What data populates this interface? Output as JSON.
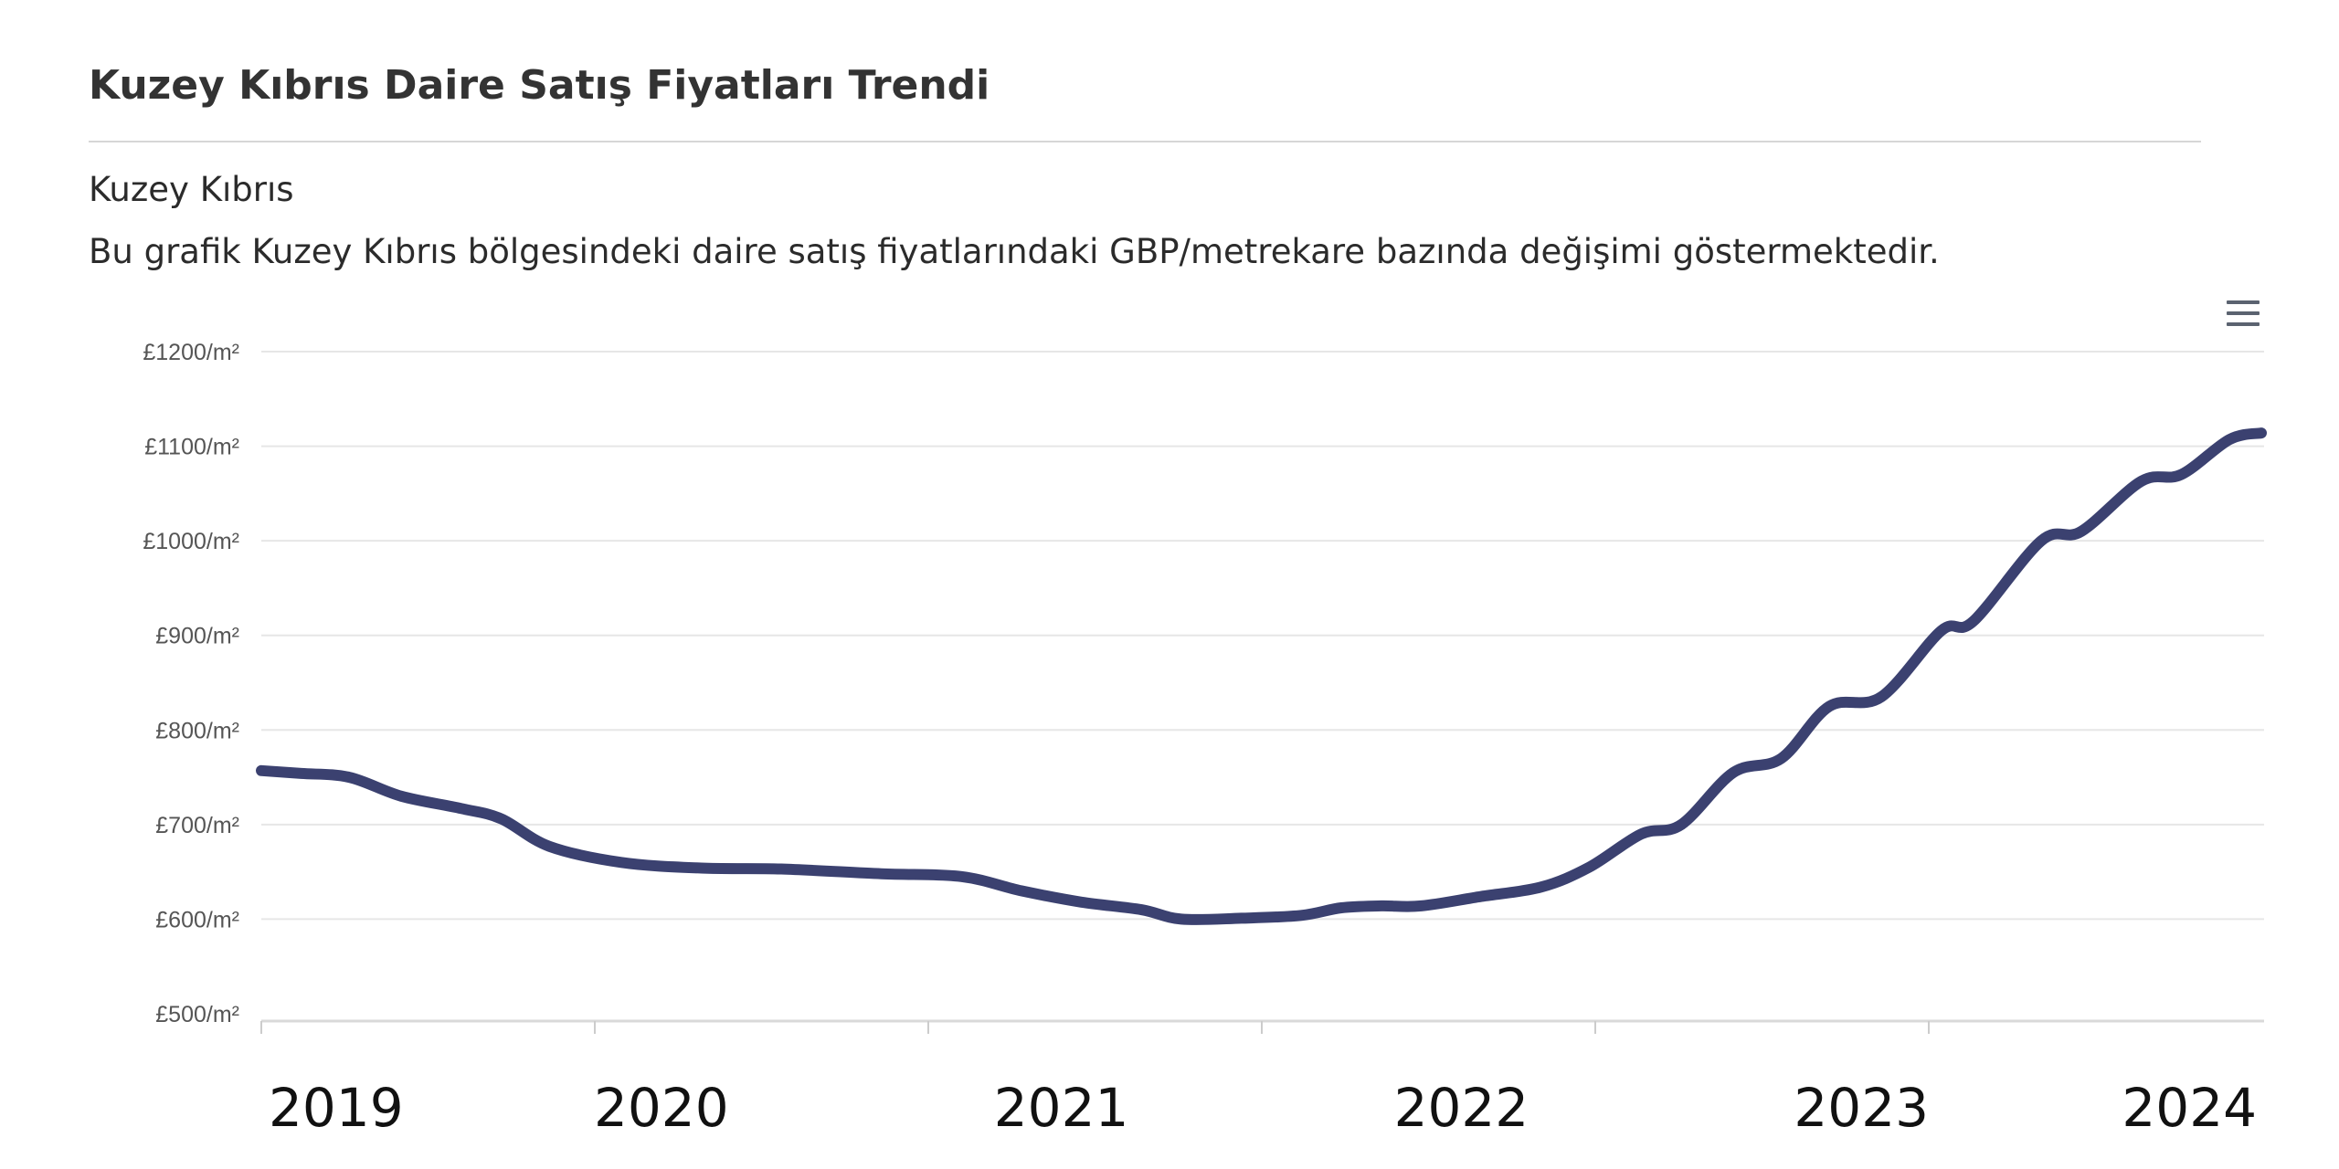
{
  "page": {
    "title": "Kuzey Kıbrıs Daire Satış Fiyatları Trendi",
    "region": "Kuzey Kıbrıs",
    "description": "Bu grafik Kuzey Kıbrıs bölgesindeki daire satış fiyatlarındaki GBP/metrekare bazında değişimi göstermektedir.",
    "menu_icon": "hamburger-menu-icon"
  },
  "chart_data": {
    "type": "line",
    "title": "",
    "xlabel": "",
    "ylabel": "",
    "ylim": [
      500,
      1200
    ],
    "y_ticks": [
      500,
      600,
      700,
      800,
      900,
      1000,
      1100,
      1200
    ],
    "y_tick_labels": [
      "£500/m²",
      "£600/m²",
      "£700/m²",
      "£800/m²",
      "£900/m²",
      "£1000/m²",
      "£1100/m²",
      "£1200/m²"
    ],
    "x_tick_labels": [
      "2019",
      "2020",
      "2021",
      "2022",
      "2023",
      "2024"
    ],
    "grid": true,
    "legend": "none",
    "line_color": "#3b4170",
    "series": [
      {
        "x": [
          2019.0,
          2019.1,
          2019.22,
          2019.35,
          2019.5,
          2019.6,
          2019.72,
          2019.9,
          2020.1,
          2020.3,
          2020.55,
          2020.75,
          2020.9,
          2021.05,
          2021.2,
          2021.3,
          2021.45,
          2021.6,
          2021.7,
          2021.8,
          2021.9,
          2022.05,
          2022.2,
          2022.32,
          2022.45,
          2022.55,
          2022.68,
          2022.8,
          2022.92,
          2023.05,
          2023.2,
          2023.28,
          2023.45,
          2023.55,
          2023.7,
          2023.8,
          2023.92,
          2024.0
        ],
        "y": [
          757,
          754,
          750,
          730,
          717,
          706,
          677,
          660,
          654,
          653,
          648,
          645,
          630,
          618,
          610,
          600,
          601,
          604,
          612,
          614,
          614,
          624,
          634,
          655,
          690,
          700,
          755,
          770,
          825,
          835,
          905,
          915,
          1000,
          1010,
          1063,
          1070,
          1107,
          1114
        ]
      }
    ]
  }
}
